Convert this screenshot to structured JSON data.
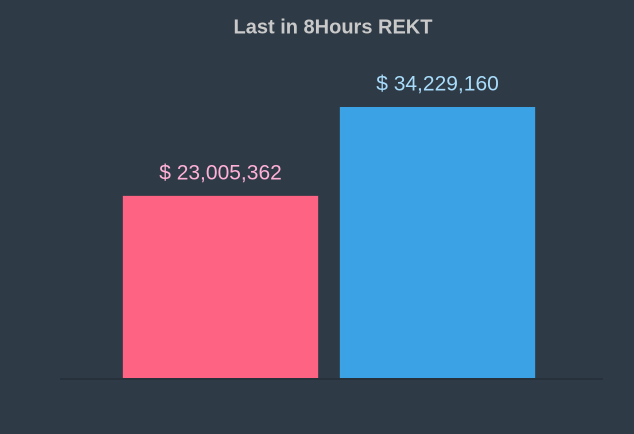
{
  "chart_data": {
    "type": "bar",
    "title": "Last in 8Hours REKT",
    "categories": [
      null,
      null
    ],
    "values": [
      23005362,
      34229160
    ],
    "value_labels": [
      "$ 23,005,362",
      "$ 34,229,160"
    ],
    "colors": [
      "#ff6384",
      "#3ca2e6"
    ],
    "value_label_colors": [
      "#ffb1d8",
      "#a8dcfa"
    ]
  }
}
